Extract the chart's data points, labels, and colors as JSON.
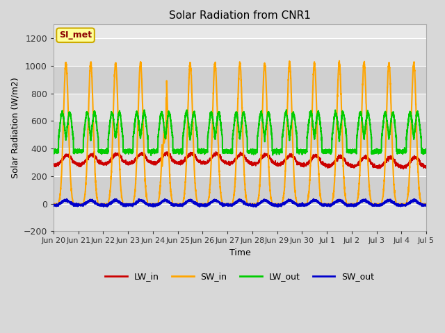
{
  "title": "Solar Radiation from CNR1",
  "xlabel": "Time",
  "ylabel": "Solar Radiation (W/m2)",
  "ylim": [
    -200,
    1300
  ],
  "yticks": [
    -200,
    0,
    200,
    400,
    600,
    800,
    1000,
    1200
  ],
  "xlim_start": 0,
  "xlim_end": 15,
  "xtick_labels": [
    "Jun 20",
    "Jun 21",
    "Jun 22",
    "Jun 23",
    "Jun 24",
    "Jun 25",
    "Jun 26",
    "Jun 27",
    "Jun 28",
    "Jun 29",
    "Jun 30",
    "Jul 1",
    "Jul 2",
    "Jul 3",
    "Jul 4",
    "Jul 5"
  ],
  "bg_color": "#d8d8d8",
  "plot_bg_color": "#e8e8e8",
  "stripe_colors": [
    "#e0e0e0",
    "#d0d0d0"
  ],
  "grid_color": "#ffffff",
  "colors": {
    "LW_in": "#cc0000",
    "SW_in": "#ffa500",
    "LW_out": "#00cc00",
    "SW_out": "#0000cc"
  },
  "line_widths": {
    "LW_in": 1.2,
    "SW_in": 1.5,
    "LW_out": 1.5,
    "SW_out": 1.5
  },
  "annotation_text": "SI_met",
  "annotation_color": "#8b0000",
  "annotation_bg": "#ffff99",
  "annotation_border": "#ccaa00",
  "num_days": 15,
  "points_per_day": 288,
  "SW_in_peak": 1020,
  "LW_out_night": 380,
  "LW_out_day_peak": 660,
  "LW_in_base": 300,
  "SW_out_amp": 35
}
